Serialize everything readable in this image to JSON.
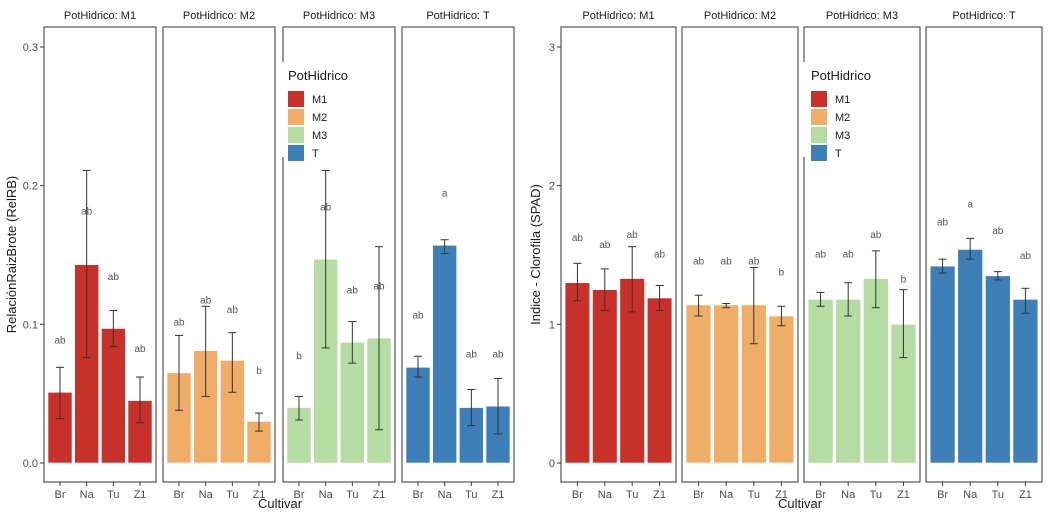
{
  "chart_data": [
    {
      "type": "bar",
      "facet_var": "PotHidrico",
      "facets": [
        "PotHidrico: M1",
        "PotHidrico: M2",
        "PotHidrico: M3",
        "PotHidrico: T"
      ],
      "categories": [
        "Br",
        "Na",
        "Tu",
        "Z1"
      ],
      "xlabel": "Cultivar",
      "ylabel": "RelaciónRaizBrote (RelRB)",
      "ylim": [
        -0.015,
        0.315
      ],
      "yticks": [
        0.0,
        0.1,
        0.2,
        0.3
      ],
      "ytick_labels": [
        "0.0",
        "0.1",
        "0.2",
        "0.3"
      ],
      "grid": false,
      "series": [
        {
          "name": "M1",
          "values": [
            0.051,
            0.143,
            0.097,
            0.045
          ],
          "err_low": [
            0.032,
            0.076,
            0.084,
            0.029
          ],
          "err_high": [
            0.069,
            0.211,
            0.11,
            0.062
          ],
          "letters": [
            "ab",
            "ab",
            "ab",
            "ab"
          ],
          "letter_y": [
            0.089,
            0.182,
            0.135,
            0.083
          ]
        },
        {
          "name": "M2",
          "values": [
            0.065,
            0.081,
            0.074,
            0.03
          ],
          "err_low": [
            0.038,
            0.048,
            0.051,
            0.023
          ],
          "err_high": [
            0.092,
            0.113,
            0.094,
            0.036
          ],
          "letters": [
            "ab",
            "ab",
            "ab",
            "b"
          ],
          "letter_y": [
            0.102,
            0.118,
            0.111,
            0.067
          ]
        },
        {
          "name": "M3",
          "values": [
            0.04,
            0.147,
            0.087,
            0.09
          ],
          "err_low": [
            0.031,
            0.083,
            0.072,
            0.024
          ],
          "err_high": [
            0.048,
            0.211,
            0.102,
            0.156
          ],
          "letters": [
            "b",
            "ab",
            "ab",
            "ab"
          ],
          "letter_y": [
            0.078,
            0.185,
            0.125,
            0.128
          ]
        },
        {
          "name": "T",
          "values": [
            0.069,
            0.157,
            0.04,
            0.041
          ],
          "err_low": [
            0.062,
            0.151,
            0.027,
            0.021
          ],
          "err_high": [
            0.077,
            0.161,
            0.053,
            0.061
          ],
          "letters": [
            "ab",
            "a",
            "ab",
            "ab"
          ],
          "letter_y": [
            0.107,
            0.195,
            0.079,
            0.079
          ]
        }
      ],
      "legend": {
        "title": "PotHidrico",
        "position": "inside facet M3, upper",
        "items": [
          "M1",
          "M2",
          "M3",
          "T"
        ]
      }
    },
    {
      "type": "bar",
      "facet_var": "PotHidrico",
      "facets": [
        "PotHidrico: M1",
        "PotHidrico: M2",
        "PotHidrico: M3",
        "PotHidrico: T"
      ],
      "categories": [
        "Br",
        "Na",
        "Tu",
        "Z1"
      ],
      "xlabel": "Cultivar",
      "ylabel": "Indice - Clorofila (SPAD)",
      "ylim": [
        -0.15,
        3.15
      ],
      "yticks": [
        0,
        1,
        2,
        3
      ],
      "ytick_labels": [
        "0",
        "1",
        "2",
        "3"
      ],
      "grid": false,
      "series": [
        {
          "name": "M1",
          "values": [
            1.3,
            1.25,
            1.33,
            1.19
          ],
          "err_low": [
            1.17,
            1.1,
            1.09,
            1.1
          ],
          "err_high": [
            1.44,
            1.4,
            1.56,
            1.28
          ],
          "letters": [
            "ab",
            "ab",
            "ab",
            "ab"
          ],
          "letter_y": [
            1.63,
            1.58,
            1.65,
            1.51
          ]
        },
        {
          "name": "M2",
          "values": [
            1.14,
            1.14,
            1.14,
            1.06
          ],
          "err_low": [
            1.06,
            1.12,
            0.86,
            0.99
          ],
          "err_high": [
            1.21,
            1.15,
            1.41,
            1.13
          ],
          "letters": [
            "ab",
            "ab",
            "ab",
            "b"
          ],
          "letter_y": [
            1.46,
            1.46,
            1.46,
            1.38
          ]
        },
        {
          "name": "M3",
          "values": [
            1.18,
            1.18,
            1.33,
            1.0
          ],
          "err_low": [
            1.13,
            1.06,
            1.12,
            0.76
          ],
          "err_high": [
            1.23,
            1.3,
            1.53,
            1.25
          ],
          "letters": [
            "ab",
            "ab",
            "ab",
            "b"
          ],
          "letter_y": [
            1.51,
            1.51,
            1.65,
            1.33
          ]
        },
        {
          "name": "T",
          "values": [
            1.42,
            1.54,
            1.35,
            1.18
          ],
          "err_low": [
            1.37,
            1.47,
            1.32,
            1.08
          ],
          "err_high": [
            1.47,
            1.62,
            1.38,
            1.26
          ],
          "letters": [
            "ab",
            "a",
            "ab",
            "ab"
          ],
          "letter_y": [
            1.74,
            1.87,
            1.68,
            1.5
          ]
        }
      ],
      "legend": {
        "title": "PotHidrico",
        "position": "inside facet M3, upper",
        "items": [
          "M1",
          "M2",
          "M3",
          "T"
        ]
      }
    }
  ],
  "colors": {
    "M1": "#c8312a",
    "M2": "#f0ad68",
    "M3": "#b4dca3",
    "T": "#3f7fb8"
  }
}
